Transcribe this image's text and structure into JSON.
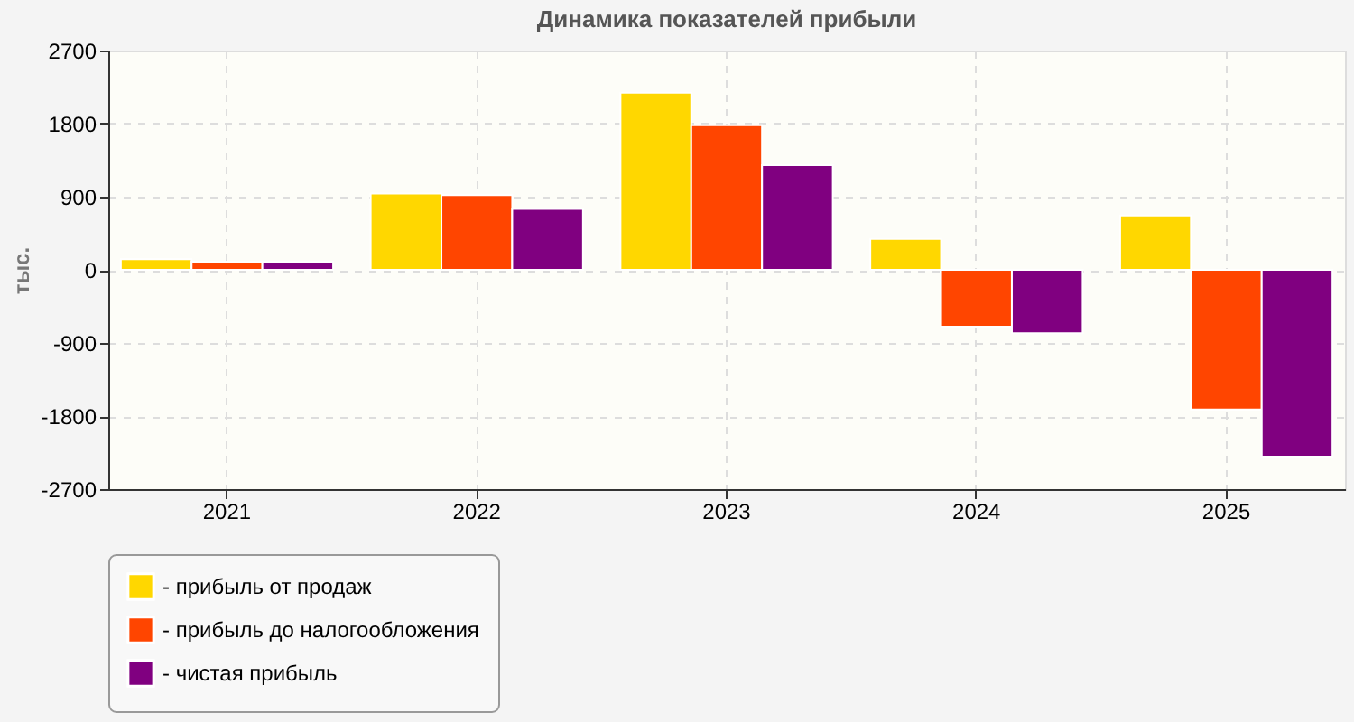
{
  "chart_data": {
    "type": "bar",
    "title": "Динамика показателей прибыли",
    "ylabel": "тыс.",
    "categories": [
      "2021",
      "2022",
      "2023",
      "2024",
      "2025"
    ],
    "series": [
      {
        "name": "- прибыль от продаж",
        "color": "#ffd700",
        "values": [
          130,
          940,
          2180,
          380,
          670
        ]
      },
      {
        "name": "- прибыль до налогообложения",
        "color": "#ff4500",
        "values": [
          100,
          920,
          1780,
          -700,
          -1720
        ]
      },
      {
        "name": "- чистая прибыль",
        "color": "#800080",
        "values": [
          100,
          750,
          1290,
          -780,
          -2300
        ]
      }
    ],
    "ylim": [
      -2700,
      2700
    ],
    "yticks": [
      -2700,
      -1800,
      -900,
      0,
      900,
      1800,
      2700
    ],
    "grid": true,
    "legend": "bottom"
  }
}
